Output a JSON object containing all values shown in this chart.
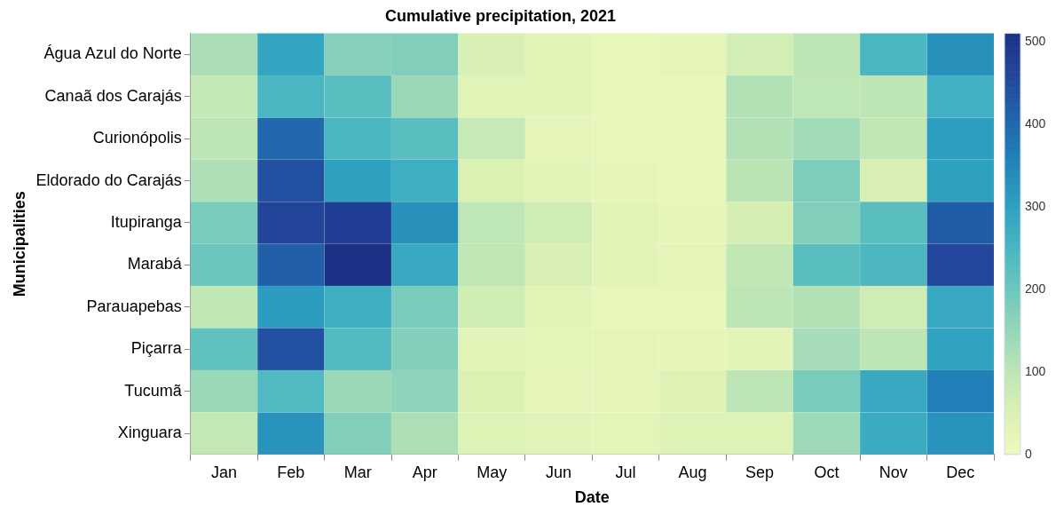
{
  "chart_data": {
    "type": "heatmap",
    "title": "Cumulative precipitation, 2021",
    "xlabel": "Date",
    "ylabel": "Municipalities",
    "categories": [
      "Jan",
      "Feb",
      "Mar",
      "Apr",
      "May",
      "Jun",
      "Jul",
      "Aug",
      "Sep",
      "Oct",
      "Nov",
      "Dec"
    ],
    "y_categories": [
      "Água Azul do Norte",
      "Canaã dos Carajás",
      "Curionópolis",
      "Eldorado do Carajás",
      "Itupiranga",
      "Marabá",
      "Parauapebas",
      "Piçarra",
      "Tucumã",
      "Xinguara"
    ],
    "cells": [
      [
        125,
        290,
        170,
        175,
        55,
        30,
        20,
        25,
        65,
        100,
        250,
        330
      ],
      [
        90,
        250,
        225,
        145,
        35,
        30,
        20,
        20,
        115,
        98,
        100,
        265
      ],
      [
        100,
        400,
        250,
        225,
        85,
        25,
        20,
        20,
        115,
        135,
        95,
        305
      ],
      [
        120,
        440,
        300,
        270,
        50,
        30,
        22,
        20,
        105,
        180,
        55,
        300
      ],
      [
        185,
        465,
        480,
        330,
        98,
        70,
        30,
        22,
        62,
        175,
        225,
        420
      ],
      [
        200,
        415,
        510,
        280,
        95,
        55,
        30,
        25,
        95,
        225,
        245,
        460
      ],
      [
        95,
        310,
        270,
        185,
        70,
        30,
        20,
        20,
        100,
        115,
        72,
        280
      ],
      [
        215,
        440,
        240,
        172,
        30,
        28,
        25,
        22,
        30,
        130,
        100,
        295
      ],
      [
        145,
        240,
        145,
        160,
        50,
        25,
        25,
        40,
        100,
        185,
        280,
        360
      ],
      [
        90,
        325,
        175,
        122,
        45,
        35,
        28,
        45,
        45,
        140,
        275,
        325
      ]
    ],
    "clim": [
      0,
      510
    ],
    "cticks": [
      0,
      100,
      200,
      300,
      400,
      500
    ]
  }
}
